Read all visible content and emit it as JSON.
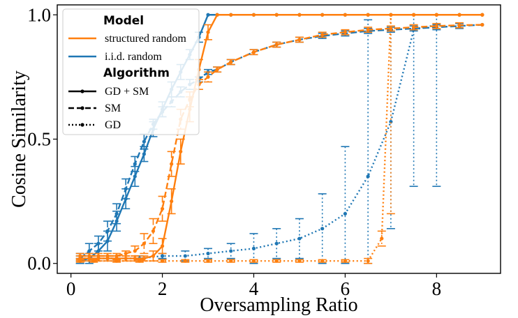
{
  "chart_data": {
    "type": "line",
    "xlabel": "Oversampling Ratio",
    "ylabel": "Cosine Similarity",
    "xlim": [
      -0.3,
      9.4
    ],
    "ylim": [
      -0.04,
      1.04
    ],
    "xticks": [
      0,
      2,
      4,
      6,
      8
    ],
    "yticks": [
      0.0,
      0.5,
      1.0
    ],
    "xtick_labels": [
      "0",
      "2",
      "4",
      "6",
      "8"
    ],
    "ytick_labels": [
      "0.0",
      "0.5",
      "1.0"
    ],
    "grid": false,
    "legend": {
      "placement": "top-left",
      "model_title": "Model",
      "models": [
        {
          "label": "structured random",
          "color": "#ff7f0e"
        },
        {
          "label": "i.i.d. random",
          "color": "#1f77b4"
        }
      ],
      "algorithm_title": "Algorithm",
      "algorithms": [
        {
          "label": "GD + SM",
          "style": "solid"
        },
        {
          "label": "SM",
          "style": "dashed"
        },
        {
          "label": "GD",
          "style": "dotted"
        }
      ]
    },
    "series": [
      {
        "model": "i.i.d. random",
        "algorithm": "GD + SM",
        "color": "#1f77b4",
        "style": "solid",
        "x": [
          0.2,
          0.4,
          0.6,
          0.8,
          1.0,
          1.2,
          1.4,
          1.6,
          1.8,
          2.0,
          2.2,
          2.4,
          2.6,
          2.8,
          3.0,
          3.2,
          3.5,
          4.0,
          4.5,
          5.0,
          5.5,
          6.0,
          6.5,
          7.0,
          7.5,
          8.0,
          8.5,
          9.0
        ],
        "y": [
          0.01,
          0.02,
          0.05,
          0.09,
          0.17,
          0.26,
          0.35,
          0.44,
          0.54,
          0.62,
          0.7,
          0.77,
          0.84,
          0.91,
          1.0,
          1.0,
          1.0,
          1.0,
          1.0,
          1.0,
          1.0,
          1.0,
          1.0,
          1.0,
          1.0,
          1.0,
          1.0,
          1.0
        ],
        "err": [
          0.01,
          0.02,
          0.03,
          0.04,
          0.04,
          0.04,
          0.04,
          0.03,
          0.03,
          0.03,
          0.03,
          0.03,
          0.02,
          0.02,
          0,
          0,
          0,
          0,
          0,
          0,
          0,
          0,
          0,
          0,
          0,
          0,
          0,
          0
        ]
      },
      {
        "model": "i.i.d. random",
        "algorithm": "SM",
        "color": "#1f77b4",
        "style": "dashed",
        "x": [
          0.2,
          0.4,
          0.6,
          0.8,
          1.0,
          1.2,
          1.4,
          1.6,
          1.8,
          2.0,
          2.2,
          2.4,
          2.6,
          2.8,
          3.0,
          3.2,
          3.5,
          4.0,
          4.5,
          5.0,
          5.5,
          6.0,
          6.5,
          7.0,
          7.5,
          8.0,
          8.5,
          9.0
        ],
        "y": [
          0.02,
          0.05,
          0.08,
          0.13,
          0.2,
          0.3,
          0.4,
          0.49,
          0.56,
          0.61,
          0.65,
          0.69,
          0.72,
          0.74,
          0.77,
          0.78,
          0.81,
          0.85,
          0.88,
          0.9,
          0.915,
          0.925,
          0.935,
          0.94,
          0.945,
          0.95,
          0.955,
          0.96
        ],
        "err": [
          0.02,
          0.03,
          0.03,
          0.04,
          0.04,
          0.04,
          0.03,
          0.03,
          0.02,
          0.02,
          0.02,
          0.02,
          0.02,
          0.01,
          0.01,
          0.01,
          0.01,
          0.01,
          0.01,
          0.01,
          0.01,
          0.01,
          0.01,
          0.01,
          0.01,
          0.01,
          0.01,
          0.0
        ]
      },
      {
        "model": "i.i.d. random",
        "algorithm": "GD",
        "color": "#1f77b4",
        "style": "dotted",
        "x": [
          0.2,
          0.4,
          0.6,
          0.8,
          1.0,
          1.5,
          2.0,
          2.5,
          3.0,
          3.5,
          4.0,
          4.5,
          5.0,
          5.5,
          6.0,
          6.5,
          7.0,
          7.5,
          8.0
        ],
        "y": [
          0.02,
          0.02,
          0.02,
          0.02,
          0.02,
          0.02,
          0.03,
          0.03,
          0.04,
          0.05,
          0.06,
          0.08,
          0.1,
          0.14,
          0.2,
          0.35,
          0.57,
          0.94,
          0.96
        ],
        "err": [
          0.01,
          0.01,
          0.01,
          0.01,
          0.01,
          0.01,
          0.01,
          0.02,
          0.02,
          0.03,
          0.06,
          0.06,
          0.08,
          0.14,
          0.27,
          0.63,
          0.43,
          0.63,
          0.65
        ]
      },
      {
        "model": "structured random",
        "algorithm": "GD + SM",
        "color": "#ff7f0e",
        "style": "solid",
        "x": [
          0.2,
          0.4,
          0.6,
          0.8,
          1.0,
          1.2,
          1.4,
          1.6,
          1.8,
          2.0,
          2.2,
          2.4,
          2.6,
          2.8,
          3.0,
          3.2,
          3.5,
          4.0,
          4.5,
          5.0,
          5.5,
          6.0,
          6.5,
          7.0,
          7.5,
          8.0,
          8.5,
          9.0
        ],
        "y": [
          0.02,
          0.02,
          0.02,
          0.02,
          0.02,
          0.02,
          0.02,
          0.02,
          0.03,
          0.07,
          0.25,
          0.45,
          0.62,
          0.78,
          0.93,
          1.0,
          1.0,
          1.0,
          1.0,
          1.0,
          1.0,
          1.0,
          1.0,
          1.0,
          1.0,
          1.0,
          1.0,
          1.0
        ],
        "err": [
          0.01,
          0.01,
          0.01,
          0.01,
          0.01,
          0.01,
          0.01,
          0.01,
          0.02,
          0.03,
          0.05,
          0.05,
          0.05,
          0.04,
          0.03,
          0,
          0,
          0,
          0,
          0,
          0,
          0,
          0,
          0,
          0,
          0,
          0,
          0
        ]
      },
      {
        "model": "structured random",
        "algorithm": "SM",
        "color": "#ff7f0e",
        "style": "dashed",
        "x": [
          0.2,
          0.4,
          0.6,
          0.8,
          1.0,
          1.2,
          1.4,
          1.6,
          1.8,
          2.0,
          2.2,
          2.4,
          2.6,
          2.8,
          3.0,
          3.2,
          3.5,
          4.0,
          4.5,
          5.0,
          5.5,
          6.0,
          6.5,
          7.0,
          7.5,
          8.0,
          8.5,
          9.0
        ],
        "y": [
          0.03,
          0.03,
          0.03,
          0.03,
          0.03,
          0.04,
          0.05,
          0.08,
          0.13,
          0.22,
          0.4,
          0.58,
          0.66,
          0.72,
          0.75,
          0.78,
          0.81,
          0.85,
          0.88,
          0.9,
          0.92,
          0.93,
          0.94,
          0.945,
          0.95,
          0.955,
          0.958,
          0.96
        ],
        "err": [
          0.01,
          0.01,
          0.01,
          0.01,
          0.01,
          0.01,
          0.02,
          0.04,
          0.05,
          0.05,
          0.05,
          0.04,
          0.03,
          0.02,
          0.02,
          0.01,
          0.01,
          0.01,
          0.01,
          0.01,
          0.01,
          0.01,
          0.01,
          0.01,
          0.01,
          0.01,
          0.01,
          0.0
        ]
      },
      {
        "model": "structured random",
        "algorithm": "GD",
        "color": "#ff7f0e",
        "style": "dotted",
        "x": [
          0.2,
          0.5,
          1.0,
          1.5,
          2.0,
          2.5,
          3.0,
          3.5,
          4.0,
          4.5,
          5.0,
          5.5,
          6.0,
          6.5,
          6.8,
          7.0,
          7.5,
          8.0,
          8.5,
          9.0
        ],
        "y": [
          0.01,
          0.01,
          0.01,
          0.01,
          0.01,
          0.01,
          0.01,
          0.01,
          0.01,
          0.01,
          0.01,
          0.01,
          0.01,
          0.01,
          0.1,
          1.0,
          1.0,
          1.0,
          1.0,
          1.0
        ],
        "err": [
          0.005,
          0.005,
          0.005,
          0.005,
          0.005,
          0.005,
          0.005,
          0.005,
          0.005,
          0.005,
          0.005,
          0.005,
          0.005,
          0.01,
          0.03,
          0.8,
          0,
          0,
          0,
          0
        ]
      }
    ]
  }
}
